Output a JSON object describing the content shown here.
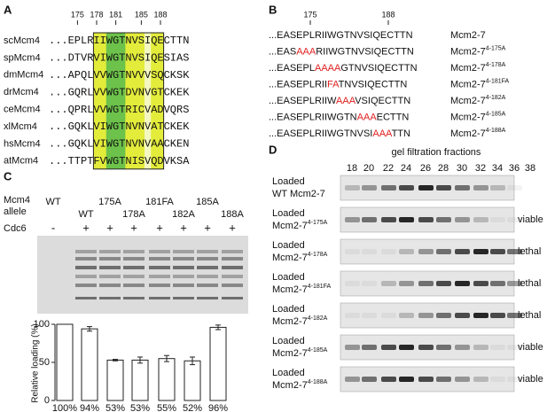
{
  "panel_a": {
    "label": "A",
    "positions": [
      175,
      178,
      181,
      185,
      188
    ],
    "rows": [
      {
        "name": "scMcm4",
        "seq": "...EPLRIIWGTNVSIQECTTN"
      },
      {
        "name": "spMcm4",
        "seq": "...DTVRVIWGTNVSIQESIAS"
      },
      {
        "name": "dmMcm4",
        "seq": "...APQLVVWGTNVVVSQCKSK"
      },
      {
        "name": "drMcm4",
        "seq": "...GQRLVVWGTDVNVGTCKEK"
      },
      {
        "name": "ceMcm4",
        "seq": "...QPRLVVWGTRICVADVQRS"
      },
      {
        "name": "xlMcm4",
        "seq": "...GQKLVIWGTNVNVATCKEK"
      },
      {
        "name": "hsMcm4",
        "seq": "...GQKLVIWGTNVNVAACKEN"
      },
      {
        "name": "atMcm4",
        "seq": "...TTPTFVWGTNISVQDVKSA"
      }
    ]
  },
  "panel_b": {
    "label": "B",
    "positions": [
      175,
      188
    ],
    "rows": [
      {
        "pre": "...EASEPLRIIWGTNVSIQECTTN",
        "name": "Mcm2-7"
      },
      {
        "pre": "...EAS",
        "mut": "AAA",
        "post": "RIIWGTNVSIQECTTN",
        "name": "Mcm2-7",
        "sup": "4-175A"
      },
      {
        "pre": "...EASEPL",
        "mut": "AAAA",
        "post": "GTNVSIQECTTN",
        "name": "Mcm2-7",
        "sup": "4-178A"
      },
      {
        "pre": "...EASEPLRII",
        "mut": "FA",
        "post": "TNVSIQECTTN",
        "name": "Mcm2-7",
        "sup": "4-181FA"
      },
      {
        "pre": "...EASEPLRIIW",
        "mut": "AAA",
        "post": "VSIQECTTN",
        "name": "Mcm2-7",
        "sup": "4-182A"
      },
      {
        "pre": "...EASEPLRIIWGTN",
        "mut": "AAA",
        "post": "ECTTN",
        "name": "Mcm2-7",
        "sup": "4-185A"
      },
      {
        "pre": "...EASEPLRIIWGTNVSI",
        "mut": "AAA",
        "post": "TTN",
        "name": "Mcm2-7",
        "sup": "4-188A"
      }
    ]
  },
  "panel_c": {
    "label": "C",
    "allele_title": [
      "Mcm4",
      "allele"
    ],
    "alleles": [
      "WT",
      "WT",
      "175A",
      "178A",
      "181FA",
      "182A",
      "185A",
      "188A"
    ],
    "cdc6_title": "Cdc6",
    "cdc6": [
      "-",
      "+",
      "+",
      "+",
      "+",
      "+",
      "+",
      "+"
    ]
  },
  "chart_data": {
    "type": "bar",
    "ylabel": "Relative loading (%)",
    "values": [
      100,
      94,
      53,
      53,
      55,
      52,
      96
    ],
    "value_labels": [
      "100%",
      "94%",
      "53%",
      "53%",
      "55%",
      "52%",
      "96%"
    ],
    "errors": [
      0,
      3,
      1,
      4,
      4,
      5,
      3
    ],
    "ylim": [
      0,
      100
    ],
    "yticks": [
      0,
      50,
      100
    ],
    "color": "#ffffff"
  },
  "panel_d": {
    "label": "D",
    "title": "gel filtration fractions",
    "fractions": [
      18,
      20,
      22,
      24,
      26,
      28,
      30,
      32,
      34,
      36,
      38
    ],
    "rows": [
      {
        "lines": [
          "Loaded",
          "WT Mcm2-7"
        ]
      },
      {
        "lines": [
          "Loaded",
          "Mcm2-7"
        ],
        "sup": "4-175A",
        "outcome": "viable"
      },
      {
        "lines": [
          "Loaded",
          "Mcm2-7"
        ],
        "sup": "4-178A",
        "outcome": "lethal"
      },
      {
        "lines": [
          "Loaded",
          "Mcm2-7"
        ],
        "sup": "4-181FA",
        "outcome": "lethal"
      },
      {
        "lines": [
          "Loaded",
          "Mcm2-7"
        ],
        "sup": "4-182A",
        "outcome": "lethal"
      },
      {
        "lines": [
          "Loaded",
          "Mcm2-7"
        ],
        "sup": "4-185A",
        "outcome": "viable"
      },
      {
        "lines": [
          "Loaded",
          "Mcm2-7"
        ],
        "sup": "4-188A",
        "outcome": "viable"
      }
    ]
  }
}
